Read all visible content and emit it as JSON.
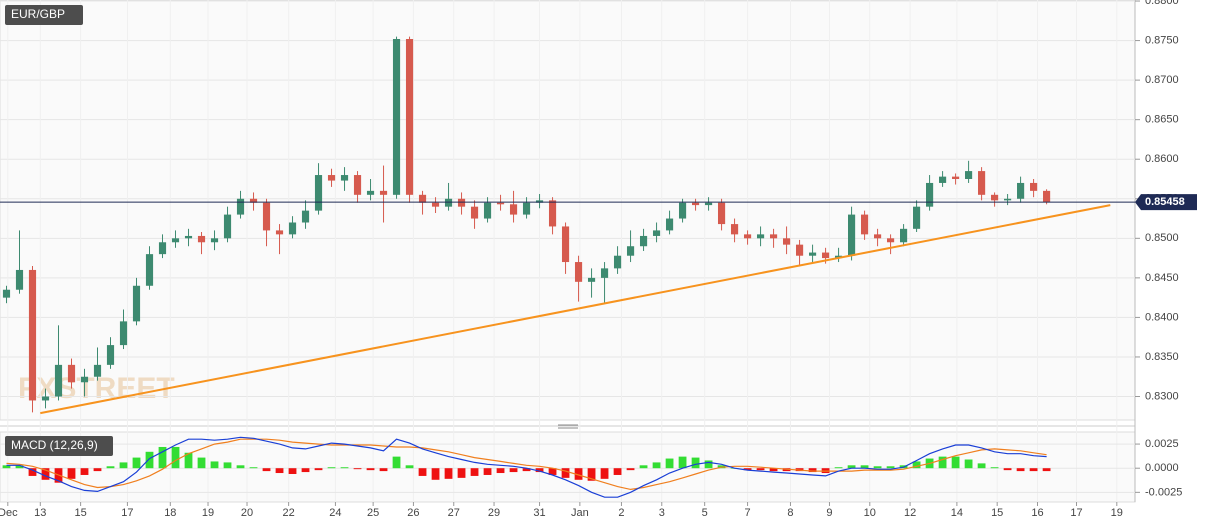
{
  "chart_data": [
    {
      "type": "candlestick",
      "title": "EUR/GBP",
      "watermark": "FXSTREET",
      "up_color": "#3d8a70",
      "down_color": "#d65a4e",
      "grid": true,
      "open": [
        0.8425,
        0.8435,
        0.846,
        0.8295,
        0.83,
        0.834,
        0.8318,
        0.8325,
        0.834,
        0.8365,
        0.8395,
        0.844,
        0.848,
        0.8495,
        0.85,
        0.8503,
        0.8495,
        0.85,
        0.853,
        0.855,
        0.8545,
        0.851,
        0.8505,
        0.852,
        0.8535,
        0.858,
        0.8573,
        0.858,
        0.8555,
        0.856,
        0.8555,
        0.8752,
        0.8555,
        0.8545,
        0.854,
        0.855,
        0.854,
        0.8525,
        0.8545,
        0.8543,
        0.853,
        0.8545,
        0.8548,
        0.8515,
        0.847,
        0.8445,
        0.845,
        0.8462,
        0.8478,
        0.849,
        0.8503,
        0.851,
        0.8525,
        0.8545,
        0.8542,
        0.8545,
        0.8518,
        0.8505,
        0.85,
        0.8505,
        0.85,
        0.8492,
        0.8478,
        0.8482,
        0.8475,
        0.8478,
        0.853,
        0.8505,
        0.85,
        0.8495,
        0.8512,
        0.854,
        0.857,
        0.8578,
        0.8575,
        0.8585,
        0.8555,
        0.8548,
        0.855,
        0.857,
        0.856
      ],
      "high": [
        0.844,
        0.851,
        0.8465,
        0.831,
        0.839,
        0.8348,
        0.8335,
        0.8362,
        0.8375,
        0.841,
        0.845,
        0.849,
        0.8505,
        0.851,
        0.8512,
        0.8508,
        0.851,
        0.854,
        0.856,
        0.8558,
        0.855,
        0.8518,
        0.8528,
        0.8548,
        0.8595,
        0.8588,
        0.859,
        0.8585,
        0.8575,
        0.8592,
        0.8755,
        0.8755,
        0.856,
        0.8552,
        0.857,
        0.8558,
        0.8548,
        0.8552,
        0.8555,
        0.856,
        0.8552,
        0.8556,
        0.8552,
        0.852,
        0.8478,
        0.8462,
        0.847,
        0.849,
        0.851,
        0.8512,
        0.852,
        0.8535,
        0.855,
        0.855,
        0.8552,
        0.855,
        0.8525,
        0.851,
        0.8515,
        0.8512,
        0.8515,
        0.8498,
        0.8492,
        0.8488,
        0.8488,
        0.854,
        0.8535,
        0.8512,
        0.8505,
        0.8518,
        0.8548,
        0.858,
        0.8585,
        0.8582,
        0.8598,
        0.859,
        0.8558,
        0.8556,
        0.8578,
        0.8575,
        0.8562
      ],
      "low": [
        0.8418,
        0.843,
        0.828,
        0.8285,
        0.8295,
        0.831,
        0.83,
        0.832,
        0.8335,
        0.836,
        0.839,
        0.8435,
        0.8475,
        0.8488,
        0.849,
        0.848,
        0.8485,
        0.8495,
        0.8525,
        0.8535,
        0.849,
        0.848,
        0.85,
        0.8512,
        0.853,
        0.8565,
        0.856,
        0.8545,
        0.8548,
        0.852,
        0.855,
        0.8545,
        0.853,
        0.8532,
        0.8535,
        0.853,
        0.8512,
        0.852,
        0.8535,
        0.852,
        0.8525,
        0.8538,
        0.8505,
        0.8455,
        0.842,
        0.8425,
        0.8418,
        0.8455,
        0.847,
        0.8484,
        0.8495,
        0.8505,
        0.852,
        0.8535,
        0.8535,
        0.851,
        0.8495,
        0.8492,
        0.849,
        0.8488,
        0.848,
        0.8465,
        0.847,
        0.8468,
        0.847,
        0.8472,
        0.8498,
        0.849,
        0.848,
        0.849,
        0.8508,
        0.8535,
        0.8565,
        0.8568,
        0.857,
        0.8548,
        0.854,
        0.8542,
        0.8545,
        0.8552,
        0.8543
      ],
      "close": [
        0.8435,
        0.846,
        0.8295,
        0.83,
        0.834,
        0.8318,
        0.8325,
        0.834,
        0.8365,
        0.8395,
        0.844,
        0.848,
        0.8495,
        0.85,
        0.8503,
        0.8495,
        0.85,
        0.853,
        0.855,
        0.8545,
        0.851,
        0.8505,
        0.852,
        0.8535,
        0.858,
        0.8573,
        0.858,
        0.8555,
        0.856,
        0.8555,
        0.8752,
        0.8555,
        0.8545,
        0.854,
        0.855,
        0.854,
        0.8525,
        0.8545,
        0.8543,
        0.853,
        0.8545,
        0.8548,
        0.8515,
        0.847,
        0.8445,
        0.845,
        0.8462,
        0.8478,
        0.849,
        0.8503,
        0.851,
        0.8525,
        0.8545,
        0.8542,
        0.8545,
        0.8518,
        0.8505,
        0.85,
        0.8505,
        0.85,
        0.8492,
        0.8478,
        0.8482,
        0.8475,
        0.8478,
        0.853,
        0.8505,
        0.85,
        0.8495,
        0.8512,
        0.854,
        0.857,
        0.8578,
        0.8575,
        0.8585,
        0.8555,
        0.8548,
        0.855,
        0.857,
        0.856,
        0.8546
      ],
      "last_price": 0.85458,
      "last_price_color": "#1e2a55",
      "trendline": {
        "x": [
          2.6,
          84.9
        ],
        "y": [
          0.8279,
          0.8542
        ],
        "color": "#f7931e"
      },
      "xlim": [
        -0.5,
        86.8
      ],
      "ylim": [
        0.82703,
        0.88013
      ],
      "yticks": [
        {
          "value": 0.88,
          "label": "0.8800"
        },
        {
          "value": 0.875,
          "label": "0.8750"
        },
        {
          "value": 0.87,
          "label": "0.8700"
        },
        {
          "value": 0.865,
          "label": "0.8650"
        },
        {
          "value": 0.86,
          "label": "0.8600"
        },
        {
          "value": 0.855,
          "label": "0.8550"
        },
        {
          "value": 0.85,
          "label": "0.8500"
        },
        {
          "value": 0.845,
          "label": "0.8450"
        },
        {
          "value": 0.84,
          "label": "0.8400"
        },
        {
          "value": 0.835,
          "label": "0.8350"
        },
        {
          "value": 0.83,
          "label": "0.8300"
        }
      ],
      "xticks": [
        {
          "value": 0.1,
          "label": "Dec"
        },
        {
          "value": 2.6,
          "label": "13"
        },
        {
          "value": 5.7,
          "label": "15"
        },
        {
          "value": 9.3,
          "label": "17"
        },
        {
          "value": 12.6,
          "label": "18"
        },
        {
          "value": 15.5,
          "label": "19"
        },
        {
          "value": 18.5,
          "label": "20"
        },
        {
          "value": 21.7,
          "label": "22"
        },
        {
          "value": 25.3,
          "label": "24"
        },
        {
          "value": 28.2,
          "label": "25"
        },
        {
          "value": 31.3,
          "label": "26"
        },
        {
          "value": 34.4,
          "label": "27"
        },
        {
          "value": 37.5,
          "label": "29"
        },
        {
          "value": 41.0,
          "label": "31"
        },
        {
          "value": 44.1,
          "label": "Jan"
        },
        {
          "value": 47.3,
          "label": "2"
        },
        {
          "value": 50.4,
          "label": "3"
        },
        {
          "value": 53.7,
          "label": "5"
        },
        {
          "value": 57.0,
          "label": "7"
        },
        {
          "value": 60.3,
          "label": "8"
        },
        {
          "value": 63.3,
          "label": "9"
        },
        {
          "value": 66.4,
          "label": "10"
        },
        {
          "value": 69.5,
          "label": "12"
        },
        {
          "value": 73.1,
          "label": "14"
        },
        {
          "value": 76.2,
          "label": "15"
        },
        {
          "value": 79.3,
          "label": "16"
        },
        {
          "value": 82.3,
          "label": "17"
        },
        {
          "value": 85.4,
          "label": "19"
        }
      ]
    },
    {
      "type": "macd",
      "title": "MACD (12,26,9)",
      "macd_color": "#1a3fd6",
      "signal_color": "#f07f1e",
      "hist_up_color": "#33dd33",
      "hist_down_color": "#ee1111",
      "macd": [
        0.0003,
        0.0003,
        -0.0002,
        -0.0008,
        -0.0013,
        -0.0019,
        -0.0023,
        -0.0024,
        -0.0019,
        -0.0014,
        -0.0004,
        0.001,
        0.0017,
        0.0024,
        0.003,
        0.003,
        0.0029,
        0.003,
        0.0032,
        0.0031,
        0.0028,
        0.0025,
        0.0021,
        0.002,
        0.0023,
        0.0026,
        0.0025,
        0.0023,
        0.0021,
        0.0018,
        0.003,
        0.0026,
        0.002,
        0.0016,
        0.0012,
        0.0009,
        0.0006,
        0.0004,
        0.0003,
        0.0002,
        0.0,
        -0.0003,
        -0.0007,
        -0.0012,
        -0.0018,
        -0.0025,
        -0.003,
        -0.003,
        -0.0025,
        -0.0018,
        -0.0012,
        -0.0005,
        0.0,
        0.0004,
        0.0006,
        0.0004,
        0.0,
        -0.0002,
        -0.0003,
        -0.0004,
        -0.0005,
        -0.0006,
        -0.0007,
        -0.0008,
        -0.0003,
        0.0,
        0.0,
        -0.0001,
        -0.0001,
        0.0001,
        0.0008,
        0.0015,
        0.002,
        0.0024,
        0.0024,
        0.0021,
        0.0017,
        0.0015,
        0.0015,
        0.0013,
        0.0012
      ],
      "signal": [
        0.0005,
        0.0004,
        0.0002,
        -0.0002,
        -0.0007,
        -0.0012,
        -0.0017,
        -0.002,
        -0.0019,
        -0.0017,
        -0.0013,
        -0.0008,
        -0.0001,
        0.0008,
        0.0015,
        0.002,
        0.0025,
        0.0027,
        0.003,
        0.003,
        0.003,
        0.0029,
        0.0027,
        0.0026,
        0.0025,
        0.0024,
        0.0024,
        0.0024,
        0.0024,
        0.0023,
        0.0022,
        0.0022,
        0.0021,
        0.0019,
        0.0017,
        0.0014,
        0.0011,
        0.0009,
        0.0007,
        0.0005,
        0.0003,
        0.0002,
        0.0,
        -0.0003,
        -0.0007,
        -0.0011,
        -0.0015,
        -0.0019,
        -0.0022,
        -0.002,
        -0.0017,
        -0.0014,
        -0.001,
        -0.0006,
        -0.0002,
        0.0001,
        0.0002,
        0.0002,
        0.0001,
        0.0,
        -0.0001,
        -0.0002,
        -0.0003,
        -0.0003,
        -0.0003,
        -0.0003,
        -0.0002,
        -0.0002,
        -0.0002,
        -0.0001,
        0.0002,
        0.0005,
        0.0009,
        0.0013,
        0.0016,
        0.0019,
        0.002,
        0.0019,
        0.0018,
        0.0016,
        0.0014
      ],
      "histogram": [
        0.0003,
        0.0003,
        -0.0008,
        -0.0012,
        -0.0015,
        -0.0011,
        -0.0007,
        -0.0003,
        0.0002,
        0.0006,
        0.0011,
        0.0017,
        0.0022,
        0.0022,
        0.0016,
        0.0011,
        0.0007,
        0.0006,
        0.0003,
        0.0001,
        -0.0003,
        -0.0005,
        -0.0006,
        -0.0004,
        -0.0002,
        0.0001,
        0.0001,
        -0.0001,
        -0.0002,
        -0.0003,
        0.0012,
        0.0003,
        -0.0008,
        -0.0012,
        -0.0011,
        -0.001,
        -0.0008,
        -0.0007,
        -0.0005,
        -0.0004,
        -0.0003,
        -0.0004,
        -0.0007,
        -0.001,
        -0.0012,
        -0.0013,
        -0.0011,
        -0.0007,
        -0.0002,
        0.0003,
        0.0006,
        0.001,
        0.0012,
        0.0011,
        0.0008,
        0.0003,
        0.0,
        -0.0002,
        -0.0002,
        -0.0003,
        -0.0003,
        -0.0003,
        -0.0004,
        -0.0005,
        0.0001,
        0.0003,
        0.0003,
        0.0002,
        0.0002,
        0.0003,
        0.0007,
        0.001,
        0.0012,
        0.0012,
        0.0009,
        0.0005,
        0.0001,
        -0.0002,
        -0.0003,
        -0.0003,
        -0.0003
      ],
      "xlim": [
        -0.5,
        86.8
      ],
      "ylim": [
        -0.0035,
        0.00375
      ],
      "yticks": [
        {
          "value": 0.0025,
          "label": "0.0025"
        },
        {
          "value": 0,
          "label": "0.0000"
        },
        {
          "value": -0.0025,
          "label": "-0.0025"
        }
      ]
    }
  ]
}
